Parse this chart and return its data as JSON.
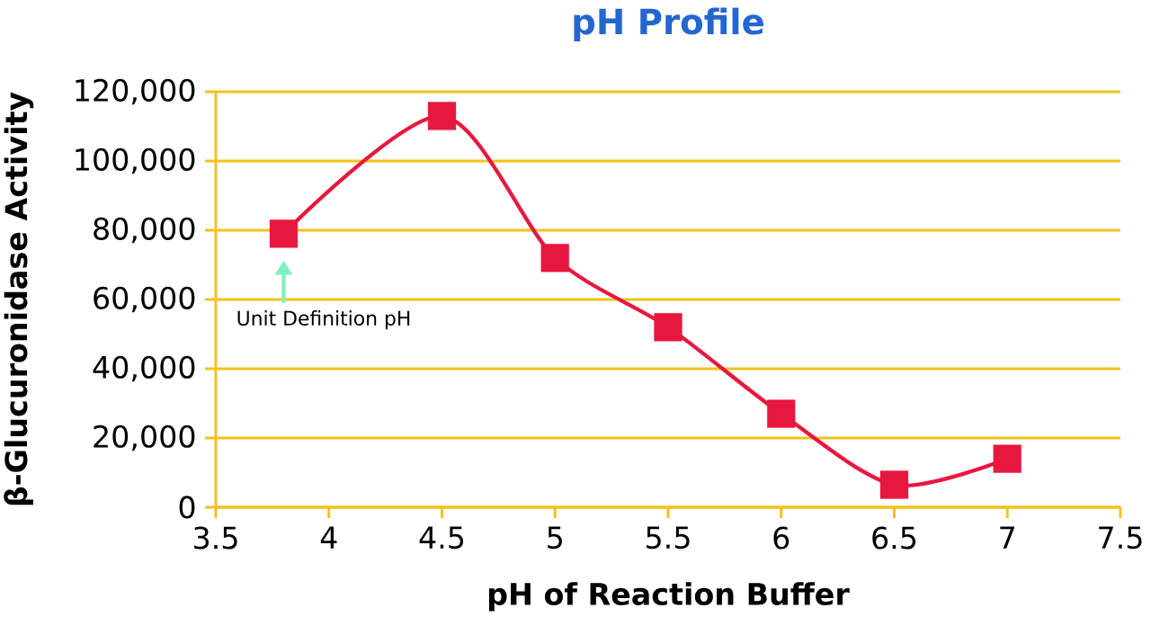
{
  "chart_data": {
    "type": "line",
    "title": "pH Profile",
    "xlabel": "pH of Reaction Buffer",
    "ylabel": "β-Glucuronidase Activity",
    "x": [
      3.8,
      4.5,
      5,
      5.5,
      6,
      6.5,
      7
    ],
    "values": [
      79000,
      113000,
      72000,
      52000,
      27000,
      6500,
      14000
    ],
    "color": "#e8173f",
    "marker": "square",
    "xlim": [
      3.5,
      7.5
    ],
    "xticks": [
      3.5,
      4,
      4.5,
      5,
      5.5,
      6,
      6.5,
      7,
      7.5
    ],
    "ylim": [
      0,
      120000
    ],
    "yticks": [
      0,
      {
        "value": 20000,
        "label": "20,000"
      },
      {
        "value": 40000,
        "label": "40,000"
      },
      {
        "value": 60000,
        "label": "60,000"
      },
      {
        "value": 80000,
        "label": "80,000"
      },
      {
        "value": 100000,
        "label": "100,000"
      },
      {
        "value": 120000,
        "label": "120,000"
      }
    ],
    "grid": "y",
    "annotations": [
      "Unit Definition pH"
    ]
  }
}
